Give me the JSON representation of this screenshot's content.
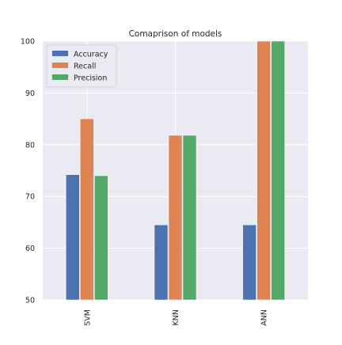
{
  "chart_data": {
    "type": "bar",
    "title": "Comaprison of models",
    "xlabel": "",
    "ylabel": "",
    "categories": [
      "SVM",
      "KNN",
      "ANN"
    ],
    "series": [
      {
        "name": "Accuracy",
        "values": [
          74.2,
          64.5,
          64.5
        ],
        "color": "#4c72b0"
      },
      {
        "name": "Recall",
        "values": [
          85.0,
          81.8,
          100.0
        ],
        "color": "#dd8452"
      },
      {
        "name": "Precision",
        "values": [
          74.0,
          81.8,
          100.0
        ],
        "color": "#55a868"
      }
    ],
    "ylim": [
      50,
      100
    ],
    "yticks": [
      50,
      60,
      70,
      80,
      90,
      100
    ],
    "grid": true,
    "legend_position": "top-left",
    "background_color": "#eaeaf2",
    "gridline_color": "#ffffff"
  }
}
